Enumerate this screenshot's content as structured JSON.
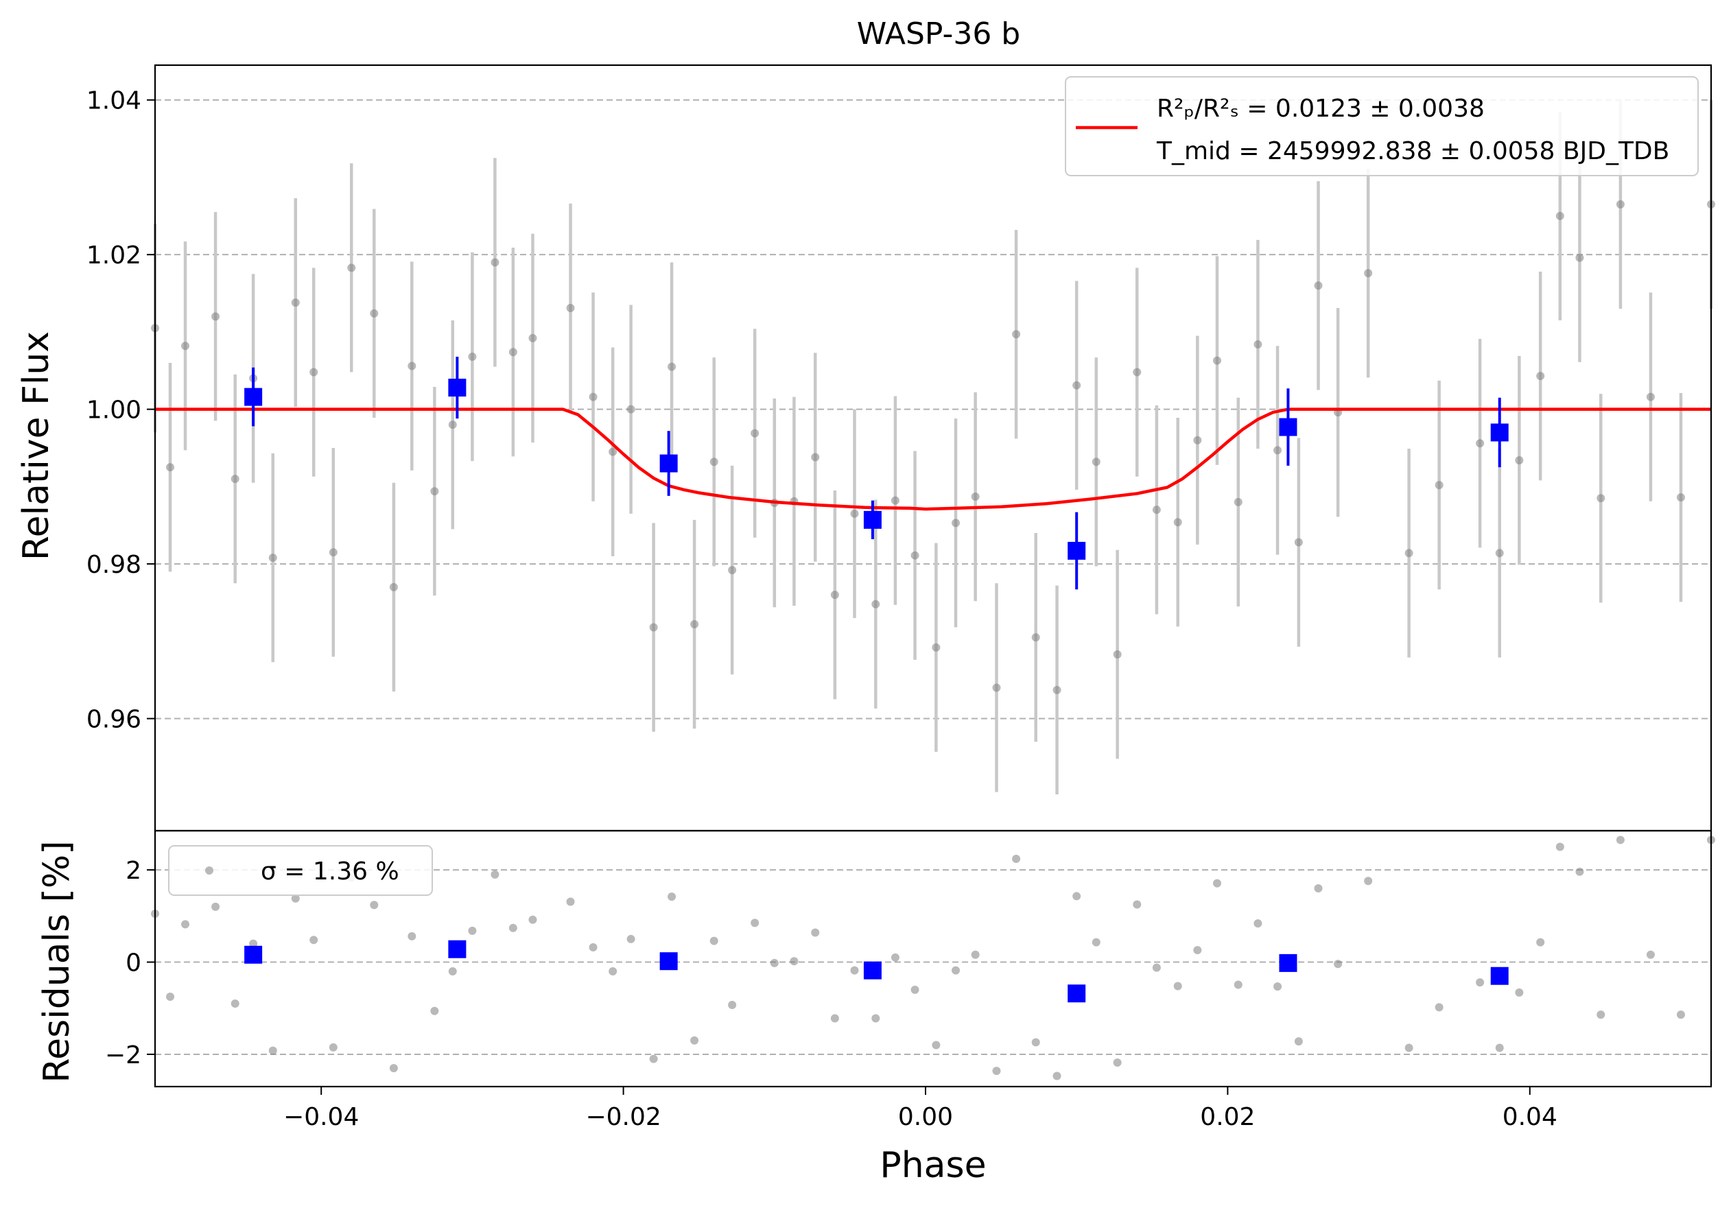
{
  "chart_data": [
    {
      "type": "scatter",
      "title": "WASP-36 b",
      "xlabel": "Phase",
      "ylabel": "Relative Flux",
      "xlim": [
        -0.051,
        0.052
      ],
      "ylim": [
        0.9455,
        1.0445
      ],
      "xticks": [
        -0.04,
        -0.02,
        0.0,
        0.02,
        0.04
      ],
      "xtick_labels": [
        "−0.04",
        "−0.02",
        "0.00",
        "0.02",
        "0.04"
      ],
      "yticks": [
        0.96,
        0.98,
        1.0,
        1.02,
        1.04
      ],
      "ytick_labels": [
        "0.96",
        "0.98",
        "1.00",
        "1.02",
        "1.04"
      ],
      "grid": "horizontal dashed",
      "legend": {
        "position": "top-right",
        "line1_label": "R²ₚ/R²ₛ = 0.0123 ± 0.0038",
        "line2_label": "T_mid = 2459992.838 ± 0.0058 BJD_TDB"
      },
      "colors": {
        "data": "#808080",
        "errorbar": "#c8c8c8",
        "binned": "#0000ff",
        "model": "#ff0000"
      },
      "series": [
        {
          "role": "unbinned data",
          "x": [
            -0.051,
            -0.05,
            -0.049,
            -0.047,
            -0.0457,
            -0.0445,
            -0.0432,
            -0.0417,
            -0.0405,
            -0.0392,
            -0.038,
            -0.0365,
            -0.0352,
            -0.034,
            -0.0325,
            -0.0313,
            -0.03,
            -0.0285,
            -0.0273,
            -0.026,
            -0.0235,
            -0.022,
            -0.0207,
            -0.0195,
            -0.018,
            -0.0168,
            -0.0153,
            -0.014,
            -0.0128,
            -0.0113,
            -0.01,
            -0.0087,
            -0.0073,
            -0.006,
            -0.0047,
            -0.0033,
            -0.002,
            -0.0007,
            0.0007,
            0.002,
            0.0033,
            0.0047,
            0.006,
            0.0073,
            0.0087,
            0.01,
            0.0113,
            0.0127,
            0.014,
            0.0153,
            0.0167,
            0.018,
            0.0193,
            0.0207,
            0.022,
            0.0233,
            0.0247,
            0.026,
            0.0273,
            0.0293,
            0.032,
            0.034,
            0.0367,
            0.038,
            0.0393,
            0.0407,
            0.042,
            0.0433,
            0.0447,
            0.046,
            0.048,
            0.05,
            0.052
          ],
          "y": [
            1.0105,
            0.9925,
            1.0082,
            1.012,
            0.991,
            1.004,
            0.9808,
            1.0138,
            1.0048,
            0.9815,
            1.0183,
            1.0124,
            0.977,
            1.0056,
            0.9894,
            0.998,
            1.0068,
            1.019,
            1.0074,
            1.0092,
            1.0131,
            1.0016,
            0.9945,
            1.0,
            0.9718,
            1.0055,
            0.9722,
            0.9932,
            0.9792,
            0.9969,
            0.9879,
            0.9881,
            0.9938,
            0.976,
            0.9865,
            0.9748,
            0.9882,
            0.9811,
            0.9692,
            0.9853,
            0.9887,
            0.964,
            1.0097,
            0.9705,
            0.9637,
            1.0031,
            0.9932,
            0.9683,
            1.0048,
            0.987,
            0.9854,
            0.996,
            1.0063,
            0.988,
            1.0084,
            0.9947,
            0.9828,
            1.016,
            0.9996,
            1.0176,
            0.9814,
            0.9902,
            0.9956,
            0.9814,
            0.9934,
            1.0043,
            1.025,
            1.0196,
            0.9885,
            1.0265,
            1.0016,
            0.9886,
            1.0265
          ],
          "yerr": 0.0135
        },
        {
          "role": "binned data",
          "x": [
            -0.0445,
            -0.031,
            -0.017,
            -0.0035,
            0.01,
            0.024,
            0.038
          ],
          "y": [
            1.0016,
            1.0028,
            0.993,
            0.9857,
            0.9817,
            0.9977,
            0.997
          ],
          "yerr": [
            0.0038,
            0.004,
            0.0042,
            0.0025,
            0.005,
            0.005,
            0.0045
          ]
        },
        {
          "role": "transit model",
          "x": [
            -0.051,
            -0.024,
            -0.023,
            -0.022,
            -0.021,
            -0.02,
            -0.019,
            -0.018,
            -0.017,
            -0.016,
            -0.015,
            -0.013,
            -0.01,
            -0.007,
            -0.004,
            -0.001,
            0.0,
            0.002,
            0.005,
            0.008,
            0.011,
            0.014,
            0.016,
            0.017,
            0.018,
            0.019,
            0.02,
            0.021,
            0.022,
            0.023,
            0.024,
            0.052
          ],
          "y": [
            1.0,
            1.0,
            0.9993,
            0.9977,
            0.996,
            0.9942,
            0.9925,
            0.9911,
            0.9901,
            0.9896,
            0.9892,
            0.9886,
            0.988,
            0.9876,
            0.9873,
            0.9872,
            0.9871,
            0.9872,
            0.9874,
            0.9878,
            0.9884,
            0.9891,
            0.9899,
            0.991,
            0.9925,
            0.9941,
            0.9958,
            0.9974,
            0.9987,
            0.9996,
            1.0,
            1.0
          ]
        }
      ]
    },
    {
      "type": "scatter",
      "xlabel": "Phase",
      "ylabel": "Residuals [%]",
      "xlim": [
        -0.051,
        0.052
      ],
      "ylim": [
        -2.7,
        2.85
      ],
      "yticks": [
        -2,
        0,
        2
      ],
      "ytick_labels": [
        "−2",
        "0",
        "2"
      ],
      "grid": "horizontal dashed",
      "legend": {
        "position": "top-left",
        "label": "σ = 1.36 %"
      },
      "series": [
        {
          "role": "unbinned residuals",
          "x": [
            -0.051,
            -0.05,
            -0.049,
            -0.047,
            -0.0457,
            -0.0445,
            -0.0432,
            -0.0417,
            -0.0405,
            -0.0392,
            -0.038,
            -0.0365,
            -0.0352,
            -0.034,
            -0.0325,
            -0.0313,
            -0.03,
            -0.0285,
            -0.0273,
            -0.026,
            -0.0235,
            -0.022,
            -0.0207,
            -0.0195,
            -0.018,
            -0.0168,
            -0.0153,
            -0.014,
            -0.0128,
            -0.0113,
            -0.01,
            -0.0087,
            -0.0073,
            -0.006,
            -0.0047,
            -0.0033,
            -0.002,
            -0.0007,
            0.0007,
            0.002,
            0.0033,
            0.0047,
            0.006,
            0.0073,
            0.0087,
            0.01,
            0.0113,
            0.0127,
            0.014,
            0.0153,
            0.0167,
            0.018,
            0.0193,
            0.0207,
            0.022,
            0.0233,
            0.0247,
            0.026,
            0.0273,
            0.0293,
            0.032,
            0.034,
            0.0367,
            0.038,
            0.0393,
            0.0407,
            0.042,
            0.0433,
            0.0447,
            0.046,
            0.048,
            0.05,
            0.052
          ],
          "y": [
            1.05,
            -0.75,
            0.82,
            1.2,
            -0.9,
            0.4,
            -1.92,
            1.38,
            0.48,
            -1.85,
            1.83,
            1.24,
            -2.3,
            0.56,
            -1.06,
            -0.2,
            0.68,
            1.9,
            0.74,
            0.92,
            1.31,
            0.32,
            -0.2,
            0.5,
            -2.1,
            1.42,
            -1.7,
            0.46,
            -0.93,
            0.85,
            -0.02,
            0.02,
            0.64,
            -1.22,
            -0.18,
            -1.22,
            0.1,
            -0.6,
            -1.8,
            -0.18,
            0.16,
            -2.36,
            2.24,
            -1.74,
            -2.47,
            1.43,
            0.43,
            -2.18,
            1.25,
            -0.12,
            -0.52,
            0.26,
            1.71,
            -0.49,
            0.84,
            -0.53,
            -1.72,
            1.6,
            -0.04,
            1.76,
            -1.86,
            -0.98,
            -0.44,
            -1.86,
            -0.66,
            0.43,
            2.5,
            1.96,
            -1.14,
            2.65,
            0.16,
            -1.14,
            2.65
          ]
        },
        {
          "role": "binned residuals",
          "x": [
            -0.0445,
            -0.031,
            -0.017,
            -0.0035,
            0.01,
            0.024,
            0.038
          ],
          "y": [
            0.16,
            0.28,
            0.02,
            -0.18,
            -0.68,
            -0.02,
            -0.3
          ]
        }
      ]
    }
  ]
}
